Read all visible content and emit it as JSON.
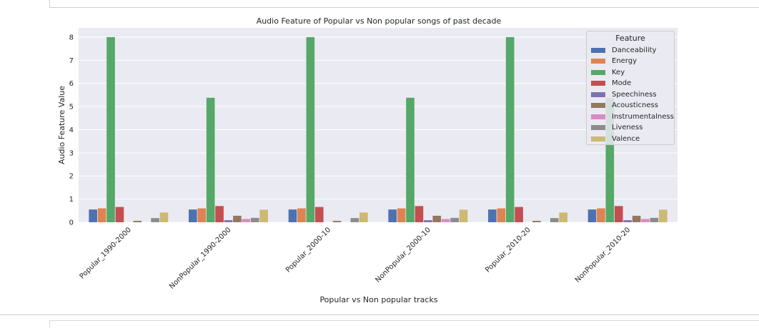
{
  "chart_data": {
    "type": "bar",
    "title": "Audio Feature of Popular vs Non popular songs of past decade",
    "xlabel": "Popular vs Non popular tracks",
    "ylabel": "Audio Feature Value",
    "ylim": [
      0,
      8.4
    ],
    "yticks": [
      "0",
      "1",
      "2",
      "3",
      "4",
      "5",
      "6",
      "7",
      "8"
    ],
    "categories": [
      "Popular_1990-2000",
      "NonPopular_1990-2000",
      "Popular_2000-10",
      "NonPopular_2000-10",
      "Popular_2010-20",
      "NonPopular_2010-20"
    ],
    "legend_title": "Feature",
    "legend_position": "top-right",
    "grid": true,
    "series": [
      {
        "name": "Danceability",
        "color": "#4c72b0",
        "values": [
          0.55,
          0.55,
          0.55,
          0.55,
          0.55,
          0.55
        ]
      },
      {
        "name": "Energy",
        "color": "#dd8452",
        "values": [
          0.6,
          0.6,
          0.6,
          0.6,
          0.6,
          0.6
        ]
      },
      {
        "name": "Key",
        "color": "#55a868",
        "values": [
          8.0,
          5.38,
          8.0,
          5.38,
          8.0,
          5.38
        ]
      },
      {
        "name": "Mode",
        "color": "#c44e52",
        "values": [
          0.66,
          0.7,
          0.66,
          0.7,
          0.66,
          0.7
        ]
      },
      {
        "name": "Speechiness",
        "color": "#8172b3",
        "values": [
          0.0,
          0.09,
          0.0,
          0.09,
          0.0,
          0.09
        ]
      },
      {
        "name": "Acousticness",
        "color": "#937860",
        "values": [
          0.06,
          0.28,
          0.06,
          0.28,
          0.06,
          0.28
        ]
      },
      {
        "name": "Instrumentalness",
        "color": "#da8bc3",
        "values": [
          0.0,
          0.14,
          0.0,
          0.14,
          0.0,
          0.14
        ]
      },
      {
        "name": "Liveness",
        "color": "#8c8c8c",
        "values": [
          0.18,
          0.19,
          0.18,
          0.19,
          0.18,
          0.19
        ]
      },
      {
        "name": "Valence",
        "color": "#ccb974",
        "values": [
          0.42,
          0.54,
          0.42,
          0.54,
          0.42,
          0.54
        ]
      }
    ]
  }
}
